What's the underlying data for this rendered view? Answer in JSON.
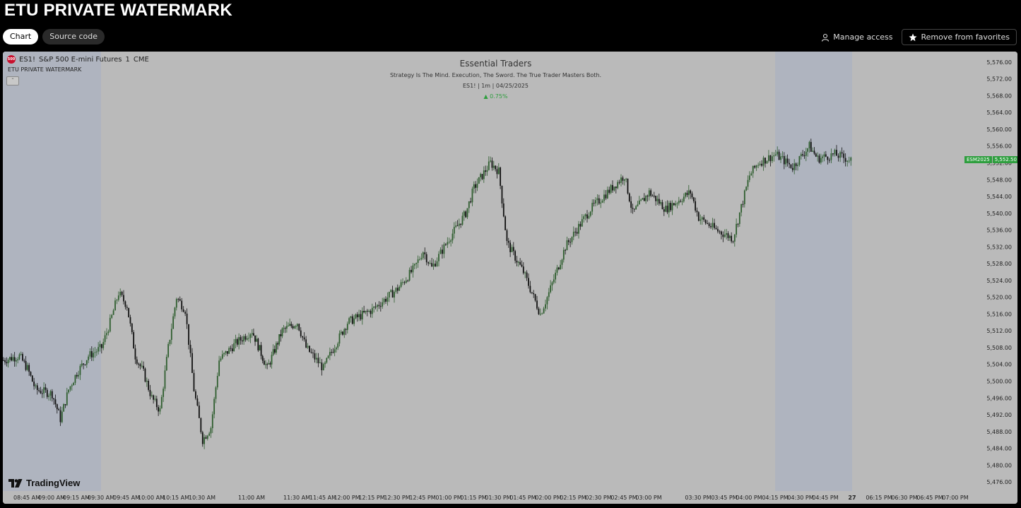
{
  "page": {
    "title": "ETU PRIVATE WATERMARK"
  },
  "tabs": [
    {
      "label": "Chart",
      "active": true
    },
    {
      "label": "Source code",
      "active": false
    }
  ],
  "actions": {
    "manage_access": "Manage access",
    "remove_favorites": "Remove from favorites"
  },
  "legend": {
    "logo_text": "500",
    "symbol": "ES1!",
    "name": "S&P 500 E-mini Futures",
    "interval": "1",
    "exchange": "CME",
    "indicator": "ETU PRIVATE WATERMARK",
    "collapse_glyph": "⌃"
  },
  "watermark": {
    "title": "Essential Traders",
    "subtitle": "Strategy Is The Mind. Execution, The Sword. The True Trader Masters Both.",
    "meta": "ES1! | 1m | 04/25/2025",
    "change": "▲ 0.75%"
  },
  "branding": {
    "name": "TradingView"
  },
  "price_badge": {
    "contract": "ESM2025",
    "price": "5,552.50"
  },
  "colors": {
    "chart_bg": "#bababa",
    "session_shade": "#afb4bf",
    "candle_up": "#2f5e2f",
    "candle_down": "#111111",
    "badge": "#2e9e3e"
  },
  "chart_data": {
    "type": "candlestick",
    "title": "Essential Traders",
    "ylim": [
      5474,
      5578
    ],
    "y_ticks": [
      "5,476.00",
      "5,480.00",
      "5,484.00",
      "5,488.00",
      "5,492.00",
      "5,496.00",
      "5,500.00",
      "5,504.00",
      "5,508.00",
      "5,512.00",
      "5,516.00",
      "5,520.00",
      "5,524.00",
      "5,528.00",
      "5,532.00",
      "5,536.00",
      "5,540.00",
      "5,544.00",
      "5,548.00",
      "5,552.00",
      "5,556.00",
      "5,560.00",
      "5,564.00",
      "5,568.00",
      "5,572.00",
      "5,576.00"
    ],
    "x_ticks": [
      "08:45 AM",
      "09:00 AM",
      "09:15 AM",
      "09:30 AM",
      "09:45 AM",
      "10:00 AM",
      "10:15 AM",
      "10:30 AM",
      "11:00 AM",
      "11:30 AM",
      "11:45 AM",
      "12:00 PM",
      "12:15 PM",
      "12:30 PM",
      "12:45 PM",
      "01:00 PM",
      "01:15 PM",
      "01:30 PM",
      "01:45 PM",
      "02:00 PM",
      "02:15 PM",
      "02:30 PM",
      "02:45 PM",
      "03:00 PM",
      "03:30 PM",
      "03:45 PM",
      "04:00 PM",
      "04:15 PM",
      "04:30 PM",
      "04:45 PM",
      "27",
      "06:15 PM",
      "06:30 PM",
      "06:45 PM",
      "07:00 PM"
    ],
    "shaded_sessions": [
      [
        "08:30 AM",
        "09:30 AM"
      ],
      [
        "04:15 PM",
        "05:00 PM"
      ]
    ],
    "last_price": 5552.5,
    "close_path": [
      [
        "08:30 AM",
        5505
      ],
      [
        "08:40 AM",
        5506
      ],
      [
        "08:45 AM",
        5503
      ],
      [
        "08:50 AM",
        5498
      ],
      [
        "09:00 AM",
        5497
      ],
      [
        "09:05 AM",
        5491
      ],
      [
        "09:10 AM",
        5498
      ],
      [
        "09:15 AM",
        5502
      ],
      [
        "09:22 AM",
        5506
      ],
      [
        "09:30 AM",
        5508
      ],
      [
        "09:35 AM",
        5514
      ],
      [
        "09:40 AM",
        5521
      ],
      [
        "09:45 AM",
        5518
      ],
      [
        "09:50 AM",
        5506
      ],
      [
        "09:55 AM",
        5502
      ],
      [
        "10:00 AM",
        5496
      ],
      [
        "10:05 AM",
        5493
      ],
      [
        "10:10 AM",
        5508
      ],
      [
        "10:15 AM",
        5520
      ],
      [
        "10:20 AM",
        5517
      ],
      [
        "10:25 AM",
        5498
      ],
      [
        "10:30 AM",
        5486
      ],
      [
        "10:35 AM",
        5489
      ],
      [
        "10:40 AM",
        5505
      ],
      [
        "10:50 AM",
        5509
      ],
      [
        "11:00 AM",
        5512
      ],
      [
        "11:10 AM",
        5503
      ],
      [
        "11:20 AM",
        5512
      ],
      [
        "11:30 AM",
        5514
      ],
      [
        "11:35 AM",
        5508
      ],
      [
        "11:45 AM",
        5503
      ],
      [
        "11:50 AM",
        5507
      ],
      [
        "12:00 PM",
        5514
      ],
      [
        "12:15 PM",
        5517
      ],
      [
        "12:30 PM",
        5522
      ],
      [
        "12:40 PM",
        5527
      ],
      [
        "12:45 PM",
        5531
      ],
      [
        "12:50 PM",
        5527
      ],
      [
        "01:00 PM",
        5534
      ],
      [
        "01:10 PM",
        5540
      ],
      [
        "01:15 PM",
        5546
      ],
      [
        "01:25 PM",
        5552
      ],
      [
        "01:30 PM",
        5550
      ],
      [
        "01:35 PM",
        5533
      ],
      [
        "01:45 PM",
        5526
      ],
      [
        "01:55 PM",
        5516
      ],
      [
        "02:00 PM",
        5521
      ],
      [
        "02:10 PM",
        5532
      ],
      [
        "02:15 PM",
        5535
      ],
      [
        "02:25 PM",
        5541
      ],
      [
        "02:35 PM",
        5545
      ],
      [
        "02:45 PM",
        5549
      ],
      [
        "02:50 PM",
        5540
      ],
      [
        "03:00 PM",
        5545
      ],
      [
        "03:10 PM",
        5541
      ],
      [
        "03:25 PM",
        5545
      ],
      [
        "03:30 PM",
        5539
      ],
      [
        "03:40 PM",
        5536
      ],
      [
        "03:50 PM",
        5534
      ],
      [
        "04:00 PM",
        5549
      ],
      [
        "04:05 PM",
        5552
      ],
      [
        "04:15 PM",
        5554
      ],
      [
        "04:25 PM",
        5551
      ],
      [
        "04:35 PM",
        5556
      ],
      [
        "04:40 PM",
        5553
      ],
      [
        "04:50 PM",
        5554
      ],
      [
        "05:00 PM",
        5552.5
      ]
    ]
  }
}
